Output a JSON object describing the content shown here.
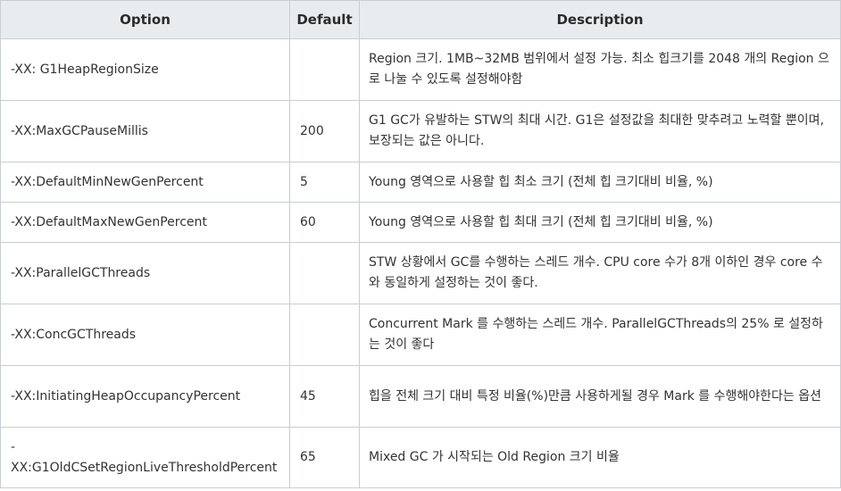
{
  "header": {
    "option": "Option",
    "default": "Default",
    "description": "Description"
  },
  "rows": [
    {
      "option": "-XX: G1HeapRegionSize",
      "default": "",
      "description": "Region 크기. 1MB~32MB 범위에서 설정 가능. 최소 힙크기를 2048 개의 Region 으로 나눌 수 있도록 설정해야함"
    },
    {
      "option": "-XX:MaxGCPauseMillis",
      "default": "200",
      "description": "G1 GC가 유발하는 STW의 최대 시간. G1은 설정값을 최대한 맞추려고 노력할 뿐이며, 보장되는 값은 아니다."
    },
    {
      "option": "-XX:DefaultMinNewGenPercent",
      "default": "5",
      "description": "Young 영역으로 사용할 힙 최소 크기 (전체 힙 크기대비 비율, %)"
    },
    {
      "option": "-XX:DefaultMaxNewGenPercent",
      "default": "60",
      "description": "Young 영역으로 사용할 힙 최대 크기 (전체 힙 크기대비 비율, %)"
    },
    {
      "option": "-XX:ParallelGCThreads",
      "default": "",
      "description": "STW 상황에서 GC를 수행하는 스레드 개수. CPU core 수가 8개 이하인 경우 core 수와 동일하게 설정하는 것이 좋다."
    },
    {
      "option": "-XX:ConcGCThreads",
      "default": "",
      "description": "Concurrent Mark 를 수행하는 스레드 개수. ParallelGCThreads의 25% 로 설정하는 것이 좋다"
    },
    {
      "option": "-XX:InitiatingHeapOccupancyPercent",
      "default": "45",
      "description": "힙을 전체 크기 대비 특정 비율(%)만큼 사용하게될 경우 Mark 를 수행해야한다는 옵션"
    },
    {
      "option": "-XX:G1OldCSetRegionLiveThresholdPercent",
      "default": "65",
      "description": "Mixed GC 가 시작되는 Old Region 크기 비율"
    }
  ]
}
